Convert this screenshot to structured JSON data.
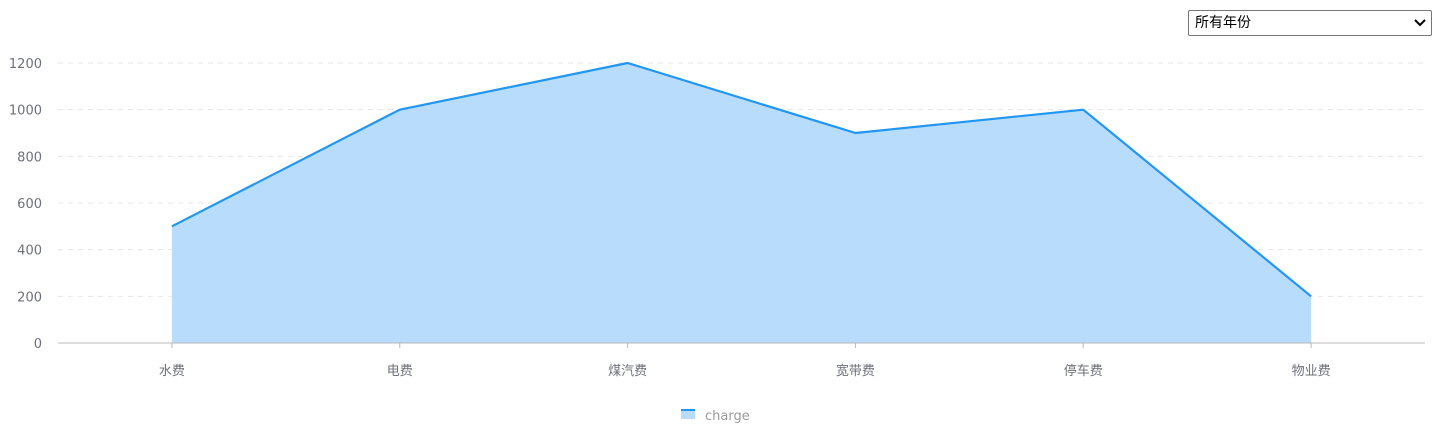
{
  "filter": {
    "selected_label": "所有年份"
  },
  "colors": {
    "line": "#2196f3",
    "area": "#b8dcfc",
    "axis": "#b8b8b8",
    "grid": "#e6e6e6",
    "tick_text": "#6e7079",
    "legend_text": "#9a9a9a"
  },
  "chart_data": {
    "type": "area",
    "categories": [
      "水费",
      "电费",
      "煤汽费",
      "宽带费",
      "停车费",
      "物业费"
    ],
    "series": [
      {
        "name": "charge",
        "values": [
          500,
          1000,
          1200,
          900,
          1000,
          200
        ]
      }
    ],
    "ylim": [
      0,
      1200
    ],
    "yticks": [
      0,
      200,
      400,
      600,
      800,
      1000,
      1200
    ],
    "grid": true,
    "legend_position": "bottom-center"
  }
}
